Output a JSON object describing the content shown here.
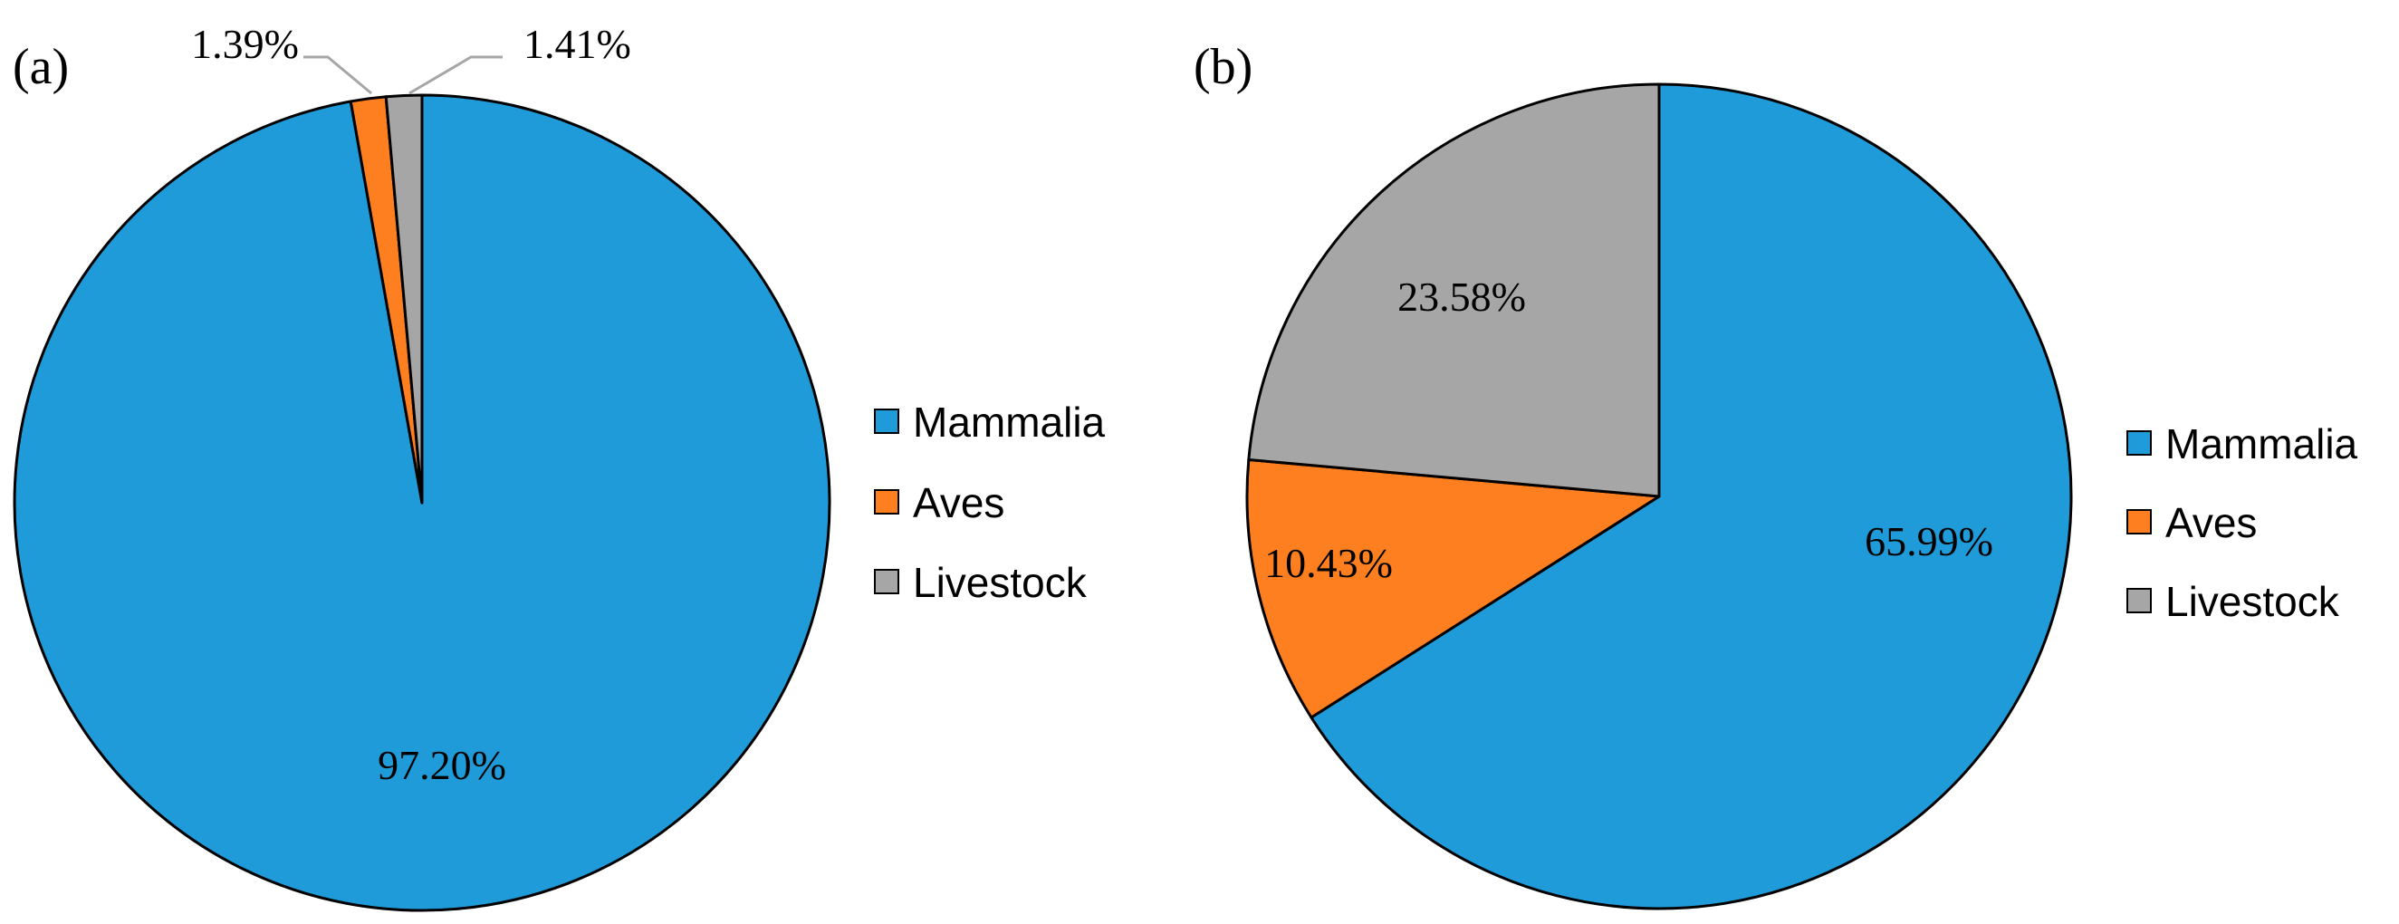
{
  "colors": {
    "Mammalia": "#1f9bd9",
    "Aves": "#fe7f20",
    "Livestock": "#a6a6a6",
    "outline": "#000000",
    "leader": "#a6a6a6"
  },
  "chart_data": [
    {
      "type": "pie",
      "panel_label": "(a)",
      "categories": [
        "Mammalia",
        "Aves",
        "Livestock"
      ],
      "values": [
        97.2,
        1.39,
        1.41
      ],
      "data_labels": [
        "97.20%",
        "1.39%",
        "1.41%"
      ],
      "start_angle_deg": 0,
      "direction": "clockwise",
      "legend": {
        "position": "right",
        "entries": [
          "Mammalia",
          "Aves",
          "Livestock"
        ]
      }
    },
    {
      "type": "pie",
      "panel_label": "(b)",
      "categories": [
        "Mammalia",
        "Aves",
        "Livestock"
      ],
      "values": [
        65.99,
        10.43,
        23.58
      ],
      "data_labels": [
        "65.99%",
        "10.43%",
        "23.58%"
      ],
      "start_angle_deg": 0,
      "direction": "clockwise",
      "legend": {
        "position": "right",
        "entries": [
          "Mammalia",
          "Aves",
          "Livestock"
        ]
      }
    }
  ]
}
